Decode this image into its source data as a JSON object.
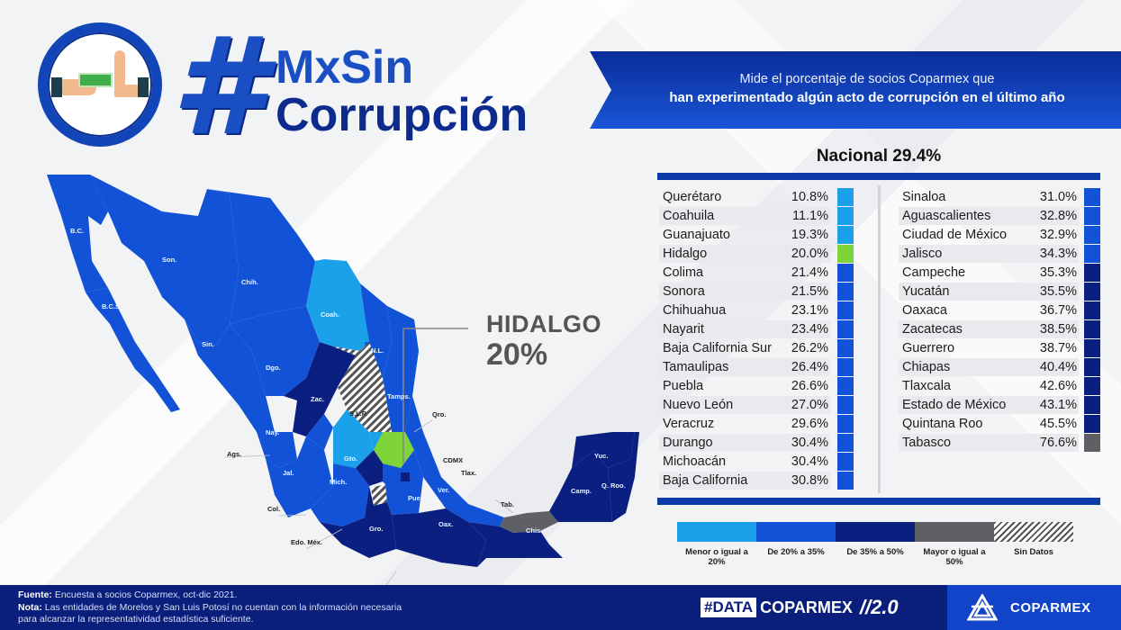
{
  "header": {
    "hash": "#",
    "title_line1": "MxSin",
    "title_line2": "Corrupción",
    "logo_icon": "hand-refusing-bribe-icon"
  },
  "banner": {
    "line1": "Mide el porcentaje de socios Coparmex que",
    "line2": "han experimentado algún acto de corrupción en el último año"
  },
  "nacional": "Nacional 29.4%",
  "colors": {
    "lte20": "#1ba1ea",
    "20to35": "#1252d6",
    "35to50": "#0b1f80",
    "gte50": "#5f6066",
    "highlight": "#7fd43a",
    "rule": "#0c3aa8"
  },
  "table": {
    "left": [
      {
        "state": "Querétaro",
        "value": "10.8%",
        "color": "#1ba1ea"
      },
      {
        "state": "Coahuila",
        "value": "11.1%",
        "color": "#1ba1ea"
      },
      {
        "state": "Guanajuato",
        "value": "19.3%",
        "color": "#1ba1ea"
      },
      {
        "state": "Hidalgo",
        "value": "20.0%",
        "color": "#7fd43a"
      },
      {
        "state": "Colima",
        "value": "21.4%",
        "color": "#1252d6"
      },
      {
        "state": "Sonora",
        "value": "21.5%",
        "color": "#1252d6"
      },
      {
        "state": "Chihuahua",
        "value": "23.1%",
        "color": "#1252d6"
      },
      {
        "state": "Nayarit",
        "value": "23.4%",
        "color": "#1252d6"
      },
      {
        "state": "Baja California Sur",
        "value": "26.2%",
        "color": "#1252d6"
      },
      {
        "state": "Tamaulipas",
        "value": "26.4%",
        "color": "#1252d6"
      },
      {
        "state": "Puebla",
        "value": "26.6%",
        "color": "#1252d6"
      },
      {
        "state": "Nuevo León",
        "value": "27.0%",
        "color": "#1252d6"
      },
      {
        "state": "Veracruz",
        "value": "29.6%",
        "color": "#1252d6"
      },
      {
        "state": "Durango",
        "value": "30.4%",
        "color": "#1252d6"
      },
      {
        "state": "Michoacán",
        "value": "30.4%",
        "color": "#1252d6"
      },
      {
        "state": "Baja California",
        "value": "30.8%",
        "color": "#1252d6"
      }
    ],
    "right": [
      {
        "state": "Sinaloa",
        "value": "31.0%",
        "color": "#1252d6"
      },
      {
        "state": "Aguascalientes",
        "value": "32.8%",
        "color": "#1252d6"
      },
      {
        "state": "Ciudad de México",
        "value": "32.9%",
        "color": "#1252d6"
      },
      {
        "state": "Jalisco",
        "value": "34.3%",
        "color": "#1252d6"
      },
      {
        "state": "Campeche",
        "value": "35.3%",
        "color": "#0b1f80"
      },
      {
        "state": "Yucatán",
        "value": "35.5%",
        "color": "#0b1f80"
      },
      {
        "state": "Oaxaca",
        "value": "36.7%",
        "color": "#0b1f80"
      },
      {
        "state": "Zacatecas",
        "value": "38.5%",
        "color": "#0b1f80"
      },
      {
        "state": "Guerrero",
        "value": "38.7%",
        "color": "#0b1f80"
      },
      {
        "state": "Chiapas",
        "value": "40.4%",
        "color": "#0b1f80"
      },
      {
        "state": "Tlaxcala",
        "value": "42.6%",
        "color": "#0b1f80"
      },
      {
        "state": "Estado de México",
        "value": "43.1%",
        "color": "#0b1f80"
      },
      {
        "state": "Quintana Roo",
        "value": "45.5%",
        "color": "#0b1f80"
      },
      {
        "state": "Tabasco",
        "value": "76.6%",
        "color": "#5f6066"
      }
    ]
  },
  "legend": [
    {
      "label": "Menor o igual a 20%",
      "color": "#1ba1ea"
    },
    {
      "label": "De 20% a 35%",
      "color": "#1252d6"
    },
    {
      "label": "De 35% a 50%",
      "color": "#0b1f80"
    },
    {
      "label": "Mayor o igual a 50%",
      "color": "#5f6066"
    },
    {
      "label": "Sin Datos",
      "color": "hatch"
    }
  ],
  "callout": {
    "title": "HIDALGO",
    "value": "20%"
  },
  "map_labels": {
    "bc": "B.C.",
    "bcs": "B.C.S.",
    "son": "Son.",
    "chih": "Chih.",
    "coah": "Coah.",
    "sin": "Sin.",
    "dgo": "Dgo.",
    "nl": "N.L.",
    "tamps": "Tamps.",
    "zac": "Zac.",
    "slp": "S.L.P.",
    "nay": "Nay.",
    "ags": "Ags.",
    "qro": "Qro.",
    "gto": "Gto.",
    "cdmx": "CDMX",
    "jal": "Jal.",
    "mich": "Mich.",
    "tlax": "Tlax.",
    "col": "Col.",
    "ver": "Ver.",
    "pue": "Pue.",
    "tab": "Tab.",
    "gro": "Gro.",
    "oax": "Oax.",
    "edomex": "Edo. Méx.",
    "mor": "Mor.",
    "chis": "Chis.",
    "yuc": "Yuc.",
    "camp": "Camp.",
    "qroo": "Q. Roo."
  },
  "footer": {
    "fuente_label": "Fuente:",
    "fuente_text": "Encuesta a socios Coparmex, oct-dic 2021.",
    "nota_label": "Nota:",
    "nota_text": "Las entidades de Morelos y San Luis Potosí no cuentan con la información necesaria",
    "nota_text2": "para alcanzar la representatividad estadística suficiente.",
    "data_chip": "#DATA",
    "data_brand": "COPARMEX",
    "data_version": "//2.0",
    "logo_text": "COPARMEX"
  },
  "chart_data": {
    "type": "table",
    "title": "#MxSinCorrupción",
    "subtitle": "Mide el porcentaje de socios Coparmex que han experimentado algún acto de corrupción en el último año",
    "national_value": 29.4,
    "unit": "%",
    "categories": [
      "Querétaro",
      "Coahuila",
      "Guanajuato",
      "Hidalgo",
      "Colima",
      "Sonora",
      "Chihuahua",
      "Nayarit",
      "Baja California Sur",
      "Tamaulipas",
      "Puebla",
      "Nuevo León",
      "Veracruz",
      "Durango",
      "Michoacán",
      "Baja California",
      "Sinaloa",
      "Aguascalientes",
      "Ciudad de México",
      "Jalisco",
      "Campeche",
      "Yucatán",
      "Oaxaca",
      "Zacatecas",
      "Guerrero",
      "Chiapas",
      "Tlaxcala",
      "Estado de México",
      "Quintana Roo",
      "Tabasco"
    ],
    "values": [
      10.8,
      11.1,
      19.3,
      20.0,
      21.4,
      21.5,
      23.1,
      23.4,
      26.2,
      26.4,
      26.6,
      27.0,
      29.6,
      30.4,
      30.4,
      30.8,
      31.0,
      32.8,
      32.9,
      34.3,
      35.3,
      35.5,
      36.7,
      38.5,
      38.7,
      40.4,
      42.6,
      43.1,
      45.5,
      76.6
    ],
    "no_data": [
      "Morelos",
      "San Luis Potosí"
    ],
    "legend": [
      "Menor o igual a 20%",
      "De 20% a 35%",
      "De 35% a 50%",
      "Mayor o igual a 50%",
      "Sin Datos"
    ],
    "highlight": {
      "state": "Hidalgo",
      "value": 20
    }
  }
}
